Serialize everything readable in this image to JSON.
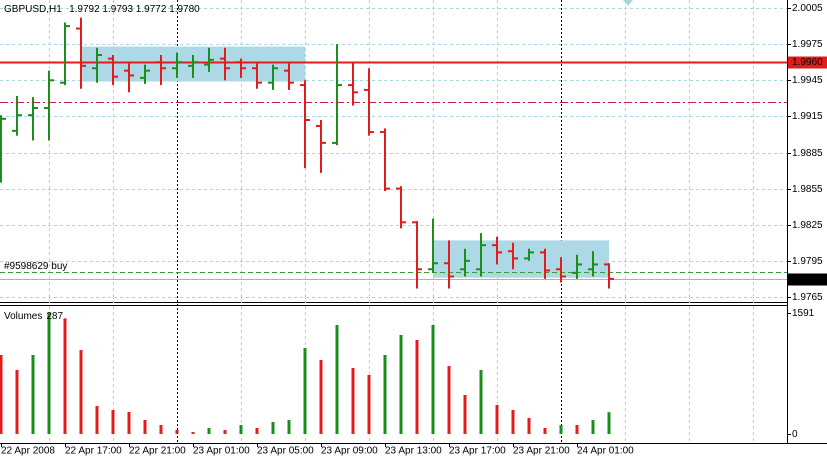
{
  "chart_data": [
    {
      "type": "ohlc",
      "title": "GBPUSD,H1",
      "ohlc_text": "1.9792 1.9793 1.9772 1.9780",
      "categories": [
        "22 Apr 2008",
        null,
        null,
        null,
        "22 Apr 17:00",
        null,
        null,
        null,
        "22 Apr 21:00",
        null,
        null,
        null,
        "23 Apr 01:00",
        null,
        null,
        null,
        "23 Apr 05:00",
        null,
        null,
        null,
        "23 Apr 09:00",
        null,
        null,
        null,
        "23 Apr 13:00",
        null,
        null,
        null,
        "23 Apr 17:00",
        null,
        null,
        null,
        "23 Apr 21:00",
        null,
        null,
        null,
        "24 Apr 01:00",
        null,
        null
      ],
      "open": [
        1.9891,
        1.9903,
        1.9916,
        1.9922,
        1.9943,
        1.9988,
        1.9955,
        1.9963,
        1.9953,
        1.9947,
        1.996,
        1.9955,
        1.9957,
        1.9958,
        1.9963,
        1.996,
        1.9955,
        1.9943,
        1.9953,
        1.9941,
        1.9907,
        1.9893,
        1.9941,
        1.9937,
        1.9902,
        1.9855,
        1.9827,
        1.9788,
        1.9793,
        1.9788,
        1.9788,
        1.9808,
        1.9803,
        1.9797,
        1.9802,
        1.9788,
        1.9785,
        1.9788,
        1.9792
      ],
      "high": [
        1.9916,
        1.9932,
        1.9931,
        1.9953,
        1.9993,
        1.9997,
        1.9972,
        1.9966,
        1.996,
        1.9958,
        1.9966,
        1.9968,
        1.9966,
        1.9972,
        1.9972,
        1.9963,
        1.996,
        1.9958,
        1.996,
        1.9945,
        1.9912,
        1.9975,
        1.996,
        1.9955,
        1.9905,
        1.9857,
        1.9828,
        1.983,
        1.9812,
        1.9805,
        1.9818,
        1.9815,
        1.981,
        1.9805,
        1.9805,
        1.9798,
        1.98,
        1.9803,
        1.9793
      ],
      "low": [
        1.986,
        1.9899,
        1.9895,
        1.9895,
        1.9941,
        1.9938,
        1.9943,
        1.9941,
        1.9935,
        1.9942,
        1.9941,
        1.9947,
        1.9947,
        1.9952,
        1.9945,
        1.9947,
        1.9938,
        1.9937,
        1.9937,
        1.9872,
        1.9868,
        1.9891,
        1.9924,
        1.9899,
        1.9853,
        1.9822,
        1.9772,
        1.9785,
        1.9772,
        1.9782,
        1.9782,
        1.9792,
        1.9788,
        1.9795,
        1.978,
        1.9777,
        1.978,
        1.9782,
        1.9772
      ],
      "close": [
        1.9913,
        1.9916,
        1.9922,
        1.9945,
        1.999,
        1.9957,
        1.9966,
        1.9948,
        1.9949,
        1.9953,
        1.9955,
        1.996,
        1.996,
        1.9962,
        1.9955,
        1.9955,
        1.9943,
        1.9955,
        1.9943,
        1.9912,
        1.9893,
        1.9941,
        1.9935,
        1.9902,
        1.9855,
        1.9827,
        1.9788,
        1.9793,
        1.9782,
        1.9795,
        1.9808,
        1.9802,
        1.9797,
        1.9802,
        1.9787,
        1.9782,
        1.9792,
        1.9792,
        1.978
      ],
      "up_color": "#1e8c1e",
      "down_color": "#e41b1b",
      "ylim": [
        1.97608,
        2.00117
      ],
      "yticks": [
        2.0005,
        1.9975,
        1.9945,
        1.9915,
        1.9885,
        1.9855,
        1.9825,
        1.9795,
        1.9765
      ],
      "grid": true,
      "hlines": [
        {
          "value": 1.996,
          "label": "1.9960",
          "color": "#e41b1b",
          "style": "solid"
        },
        {
          "value": 1.9927,
          "color": "#d01c3c",
          "style": "dashdot"
        },
        {
          "value": 1.9786,
          "text": "#9598629 buy",
          "color": "#3a9a3a",
          "style": "dashed"
        },
        {
          "value": 1.978,
          "label": "1.9780",
          "color": "#b0b0b0",
          "style": "solid"
        }
      ],
      "rectangles": [
        {
          "from": 5,
          "to": 19,
          "top": 1.9973,
          "bottom": 1.9944
        },
        {
          "from": 27,
          "to": 38,
          "top": 1.9812,
          "bottom": 1.9781
        }
      ],
      "separators": [
        11,
        35
      ]
    },
    {
      "type": "volume",
      "title": "Volumes",
      "values": [
        1039,
        842,
        1039,
        1591,
        1520,
        1105,
        368,
        316,
        289,
        184,
        118,
        53,
        26,
        79,
        53,
        118,
        79,
        158,
        184,
        1131,
        973,
        1433,
        868,
        776,
        1039,
        1302,
        1236,
        1433,
        894,
        513,
        842,
        381,
        316,
        210,
        79,
        118,
        118,
        184,
        287
      ],
      "up_color": "#1e8c1e",
      "down_color": "#e41b1b",
      "ylim": [
        0,
        1591
      ],
      "yticks": [
        1591,
        0
      ]
    }
  ]
}
